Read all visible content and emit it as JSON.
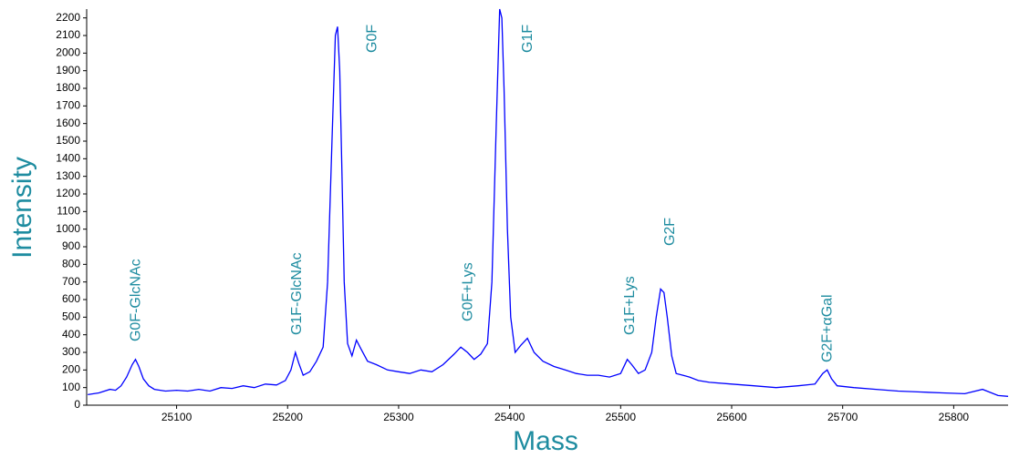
{
  "chart_data": {
    "type": "line",
    "xlabel": "Mass",
    "ylabel": "Intensity",
    "color": "#0000ff",
    "x": [
      25020,
      25030,
      25040,
      25045,
      25050,
      25055,
      25060,
      25063,
      25066,
      25070,
      25075,
      25080,
      25090,
      25100,
      25110,
      25120,
      25130,
      25140,
      25150,
      25160,
      25170,
      25180,
      25190,
      25198,
      25203,
      25207,
      25210,
      25214,
      25220,
      25226,
      25232,
      25236,
      25240,
      25243,
      25245,
      25247,
      25249,
      25251,
      25254,
      25258,
      25262,
      25266,
      25272,
      25280,
      25290,
      25300,
      25310,
      25320,
      25330,
      25340,
      25350,
      25356,
      25362,
      25368,
      25374,
      25380,
      25384,
      25388,
      25391,
      25393,
      25395,
      25398,
      25401,
      25405,
      25410,
      25416,
      25422,
      25430,
      25440,
      25450,
      25460,
      25470,
      25480,
      25490,
      25500,
      25506,
      25510,
      25516,
      25522,
      25528,
      25532,
      25536,
      25539,
      25542,
      25546,
      25550,
      25556,
      25562,
      25570,
      25580,
      25600,
      25620,
      25640,
      25660,
      25675,
      25682,
      25686,
      25690,
      25695,
      25710,
      25730,
      25750,
      25770,
      25790,
      25810,
      25826,
      25832,
      25840,
      25849
    ],
    "values": [
      60,
      70,
      90,
      85,
      110,
      160,
      230,
      260,
      220,
      150,
      110,
      90,
      80,
      85,
      80,
      90,
      80,
      100,
      95,
      110,
      100,
      120,
      115,
      140,
      200,
      300,
      240,
      170,
      190,
      250,
      330,
      700,
      1500,
      2100,
      2150,
      1900,
      1300,
      700,
      350,
      280,
      370,
      320,
      250,
      230,
      200,
      190,
      180,
      200,
      190,
      230,
      290,
      330,
      300,
      260,
      290,
      350,
      700,
      1600,
      2250,
      2200,
      1800,
      1000,
      500,
      300,
      340,
      380,
      300,
      250,
      220,
      200,
      180,
      170,
      170,
      160,
      180,
      260,
      230,
      180,
      200,
      300,
      500,
      660,
      640,
      500,
      280,
      180,
      170,
      160,
      140,
      130,
      120,
      110,
      100,
      110,
      120,
      180,
      200,
      150,
      110,
      100,
      90,
      80,
      75,
      70,
      65,
      90,
      75,
      55,
      50
    ],
    "xlim": [
      25019,
      25849
    ],
    "ylim": [
      0,
      2250
    ],
    "xticks": [
      25100,
      25200,
      25300,
      25400,
      25500,
      25600,
      25700,
      25800
    ],
    "yticks": [
      0,
      100,
      200,
      300,
      400,
      500,
      600,
      700,
      800,
      900,
      1000,
      1100,
      1200,
      1300,
      1400,
      1500,
      1600,
      1700,
      1800,
      1900,
      2000,
      2100,
      2200
    ],
    "annotations": [
      {
        "text": "G0F-GlcNAc",
        "x": 25063,
        "y": 362
      },
      {
        "text": "G1F-GlcNAc",
        "x": 25208,
        "y": 398
      },
      {
        "text": "G0F",
        "x": 25276,
        "y": 2002
      },
      {
        "text": "G0F+Lys",
        "x": 25362,
        "y": 476
      },
      {
        "text": "G1F",
        "x": 25416,
        "y": 2002
      },
      {
        "text": "G1F+Lys",
        "x": 25508,
        "y": 398
      },
      {
        "text": "G2F",
        "x": 25544,
        "y": 905
      },
      {
        "text": "G2F+αGal",
        "x": 25686,
        "y": 243
      }
    ]
  }
}
